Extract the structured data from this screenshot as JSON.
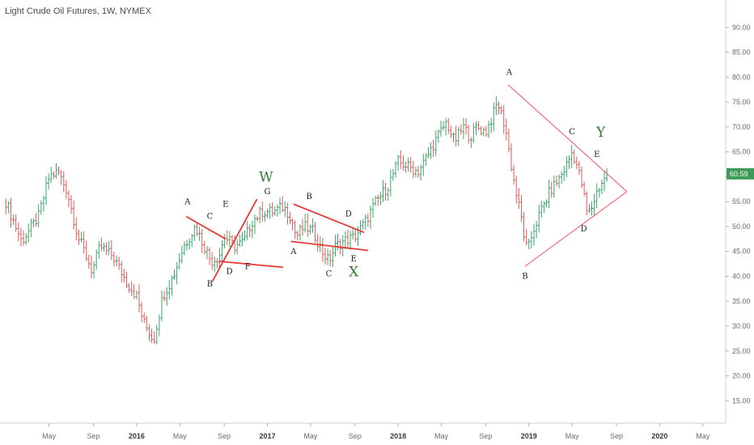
{
  "chart_data": {
    "type": "ohlc",
    "title": "Light Crude Oil Futures, 1W, NYMEX",
    "y_axis": {
      "position": "right",
      "ylim": [
        10.5,
        95.5
      ],
      "ticks": [
        "15.00",
        "20.00",
        "25.00",
        "30.00",
        "35.00",
        "40.00",
        "45.00",
        "50.00",
        "55.00",
        "60.00",
        "65.00",
        "70.00",
        "75.00",
        "80.00",
        "85.00",
        "90.00"
      ]
    },
    "x_axis": {
      "labels": [
        {
          "label": "May",
          "t": 2015.33,
          "bold": false
        },
        {
          "label": "Sep",
          "t": 2015.67,
          "bold": false
        },
        {
          "label": "2016",
          "t": 2016.0,
          "bold": true
        },
        {
          "label": "May",
          "t": 2016.33,
          "bold": false
        },
        {
          "label": "Sep",
          "t": 2016.67,
          "bold": false
        },
        {
          "label": "2017",
          "t": 2017.0,
          "bold": true
        },
        {
          "label": "May",
          "t": 2017.33,
          "bold": false
        },
        {
          "label": "Sep",
          "t": 2017.67,
          "bold": false
        },
        {
          "label": "2018",
          "t": 2018.0,
          "bold": true
        },
        {
          "label": "May",
          "t": 2018.33,
          "bold": false
        },
        {
          "label": "Sep",
          "t": 2018.67,
          "bold": false
        },
        {
          "label": "2019",
          "t": 2019.0,
          "bold": true
        },
        {
          "label": "May",
          "t": 2019.33,
          "bold": false
        },
        {
          "label": "Sep",
          "t": 2019.67,
          "bold": false
        },
        {
          "label": "2020",
          "t": 2020.0,
          "bold": true
        },
        {
          "label": "May",
          "t": 2020.33,
          "bold": false
        }
      ]
    },
    "last_price": {
      "value": 60.59,
      "label": "60.59",
      "color": "#3e9a58"
    },
    "colors": {
      "up": "#3aa66a",
      "down": "#e05a5a",
      "trend": "#e53935",
      "wave_xyz": "#2e7d32",
      "triangle": "#f06a7a"
    },
    "price_path": [
      [
        2015.0,
        55
      ],
      [
        2015.12,
        47
      ],
      [
        2015.25,
        52
      ],
      [
        2015.33,
        60
      ],
      [
        2015.4,
        61
      ],
      [
        2015.47,
        57
      ],
      [
        2015.55,
        48
      ],
      [
        2015.6,
        45
      ],
      [
        2015.66,
        41
      ],
      [
        2015.72,
        46
      ],
      [
        2015.82,
        44
      ],
      [
        2015.92,
        39
      ],
      [
        2016.0,
        36
      ],
      [
        2016.05,
        31
      ],
      [
        2016.09,
        29
      ],
      [
        2016.13,
        27
      ],
      [
        2016.2,
        36
      ],
      [
        2016.28,
        40
      ],
      [
        2016.36,
        46
      ],
      [
        2016.45,
        50
      ],
      [
        2016.5,
        47
      ],
      [
        2016.57,
        43
      ],
      [
        2016.63,
        44
      ],
      [
        2016.67,
        48
      ],
      [
        2016.75,
        46
      ],
      [
        2016.82,
        47
      ],
      [
        2016.88,
        51
      ],
      [
        2016.96,
        53
      ],
      [
        2017.05,
        53
      ],
      [
        2017.12,
        54
      ],
      [
        2017.18,
        52
      ],
      [
        2017.22,
        48
      ],
      [
        2017.28,
        50
      ],
      [
        2017.35,
        49
      ],
      [
        2017.42,
        45
      ],
      [
        2017.47,
        43
      ],
      [
        2017.52,
        46
      ],
      [
        2017.58,
        47
      ],
      [
        2017.67,
        48
      ],
      [
        2017.75,
        51
      ],
      [
        2017.83,
        55
      ],
      [
        2017.92,
        58
      ],
      [
        2018.0,
        63
      ],
      [
        2018.08,
        62
      ],
      [
        2018.15,
        61
      ],
      [
        2018.22,
        64
      ],
      [
        2018.3,
        68
      ],
      [
        2018.37,
        71
      ],
      [
        2018.43,
        67
      ],
      [
        2018.5,
        70
      ],
      [
        2018.55,
        68
      ],
      [
        2018.6,
        70
      ],
      [
        2018.67,
        69
      ],
      [
        2018.72,
        72
      ],
      [
        2018.76,
        75
      ],
      [
        2018.82,
        70
      ],
      [
        2018.86,
        63
      ],
      [
        2018.9,
        57
      ],
      [
        2018.94,
        52
      ],
      [
        2018.97,
        47
      ],
      [
        2018.99,
        45
      ],
      [
        2019.03,
        49
      ],
      [
        2019.09,
        53
      ],
      [
        2019.16,
        57
      ],
      [
        2019.24,
        60
      ],
      [
        2019.3,
        63
      ],
      [
        2019.33,
        65
      ],
      [
        2019.36,
        63
      ],
      [
        2019.41,
        58
      ],
      [
        2019.44,
        53
      ],
      [
        2019.47,
        53
      ],
      [
        2019.52,
        57
      ],
      [
        2019.56,
        59
      ],
      [
        2019.6,
        60
      ]
    ],
    "trendlines": [
      {
        "style": "trend",
        "from": [
          2016.38,
          52.0
        ],
        "to": [
          2016.68,
          47.5
        ]
      },
      {
        "style": "trend",
        "from": [
          2016.58,
          39.0
        ],
        "to": [
          2016.92,
          55.5
        ]
      },
      {
        "style": "trend",
        "from": [
          2016.63,
          43.0
        ],
        "to": [
          2017.12,
          41.8
        ]
      },
      {
        "style": "trend",
        "from": [
          2017.2,
          54.5
        ],
        "to": [
          2017.74,
          48.8
        ]
      },
      {
        "style": "trend",
        "from": [
          2017.18,
          47.0
        ],
        "to": [
          2017.77,
          45.2
        ]
      },
      {
        "style": "triangle",
        "from": [
          2018.84,
          78.5
        ],
        "to": [
          2019.75,
          57.0
        ]
      },
      {
        "style": "triangle",
        "from": [
          2018.97,
          42.0
        ],
        "to": [
          2019.75,
          57.0
        ]
      }
    ],
    "wave_labels": [
      {
        "text": "A",
        "t": 2016.39,
        "y": 54.5,
        "style": "small"
      },
      {
        "text": "C",
        "t": 2016.56,
        "y": 51.5,
        "style": "small"
      },
      {
        "text": "E",
        "t": 2016.68,
        "y": 54.0,
        "style": "small"
      },
      {
        "text": "G",
        "t": 2017.0,
        "y": 56.5,
        "style": "small"
      },
      {
        "text": "B",
        "t": 2016.56,
        "y": 38.0,
        "style": "small"
      },
      {
        "text": "D",
        "t": 2016.71,
        "y": 40.5,
        "style": "small"
      },
      {
        "text": "F",
        "t": 2016.85,
        "y": 41.5,
        "style": "small"
      },
      {
        "text": "W",
        "t": 2016.99,
        "y": 59.0,
        "style": "wave"
      },
      {
        "text": "B",
        "t": 2017.32,
        "y": 55.5,
        "style": "small"
      },
      {
        "text": "D",
        "t": 2017.62,
        "y": 52.0,
        "style": "small"
      },
      {
        "text": "A",
        "t": 2017.2,
        "y": 44.5,
        "style": "small"
      },
      {
        "text": "C",
        "t": 2017.47,
        "y": 40.0,
        "style": "small"
      },
      {
        "text": "E",
        "t": 2017.66,
        "y": 43.0,
        "style": "small"
      },
      {
        "text": "X",
        "t": 2017.66,
        "y": 40.0,
        "style": "wave"
      },
      {
        "text": "A",
        "t": 2018.85,
        "y": 80.5,
        "style": "small"
      },
      {
        "text": "B",
        "t": 2018.97,
        "y": 39.5,
        "style": "small"
      },
      {
        "text": "C",
        "t": 2019.33,
        "y": 68.5,
        "style": "small"
      },
      {
        "text": "D",
        "t": 2019.42,
        "y": 49.0,
        "style": "small"
      },
      {
        "text": "E",
        "t": 2019.52,
        "y": 64.0,
        "style": "small"
      },
      {
        "text": "Y",
        "t": 2019.55,
        "y": 68.0,
        "style": "wave"
      }
    ]
  }
}
